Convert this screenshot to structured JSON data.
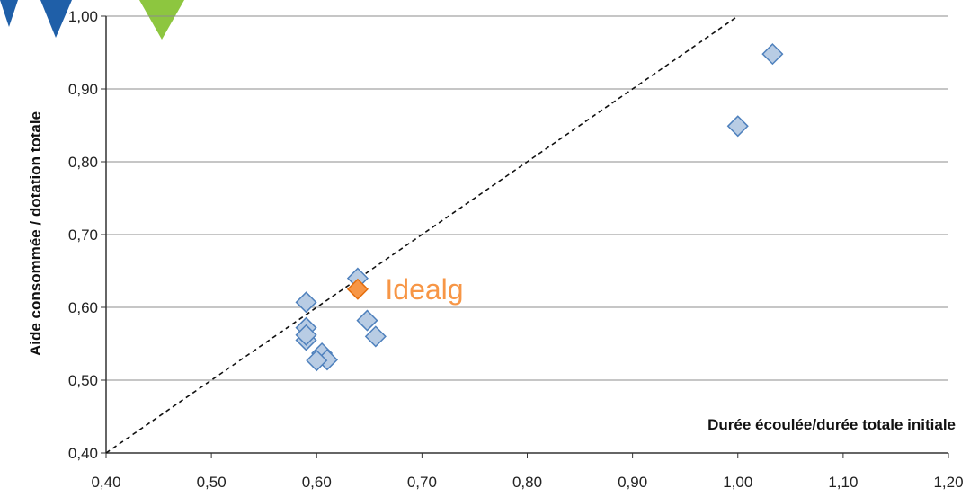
{
  "chart_data": {
    "type": "scatter",
    "xlabel": "Durée écoulée/durée totale initiale",
    "ylabel": "Aide consommée / dotation totale",
    "xlim": [
      0.4,
      1.2
    ],
    "ylim": [
      0.4,
      1.0
    ],
    "x_ticks": [
      "0,40",
      "0,50",
      "0,60",
      "0,70",
      "0,80",
      "0,90",
      "1,00",
      "1,10",
      "1,20"
    ],
    "y_ticks": [
      "0,40",
      "0,50",
      "0,60",
      "0,70",
      "0,80",
      "0,90",
      "1,00"
    ],
    "grid": "horizontal",
    "reference_line": {
      "style": "dashed",
      "points": [
        [
          0.4,
          0.4
        ],
        [
          1.0,
          1.0
        ]
      ]
    },
    "series": [
      {
        "color": "#b8cce4",
        "stroke": "#4f81bd",
        "points": [
          {
            "x": 0.59,
            "y": 0.607
          },
          {
            "x": 0.59,
            "y": 0.572
          },
          {
            "x": 0.59,
            "y": 0.555
          },
          {
            "x": 0.59,
            "y": 0.562
          },
          {
            "x": 0.605,
            "y": 0.537
          },
          {
            "x": 0.61,
            "y": 0.528
          },
          {
            "x": 0.6,
            "y": 0.527
          },
          {
            "x": 0.639,
            "y": 0.64
          },
          {
            "x": 0.648,
            "y": 0.582
          },
          {
            "x": 0.656,
            "y": 0.56
          },
          {
            "x": 1.0,
            "y": 0.849
          },
          {
            "x": 1.033,
            "y": 0.948
          }
        ]
      },
      {
        "name": "Idealg",
        "color": "#f79646",
        "stroke": "#e46c0a",
        "points": [
          {
            "x": 0.639,
            "y": 0.625
          }
        ]
      }
    ],
    "annotations": [
      {
        "text": "Idealg",
        "x": 0.665,
        "y": 0.626,
        "color": "#f79646"
      }
    ],
    "decorations": [
      "blue-chevron-icon",
      "blue-chevron-icon",
      "green-chevron-icon"
    ]
  }
}
